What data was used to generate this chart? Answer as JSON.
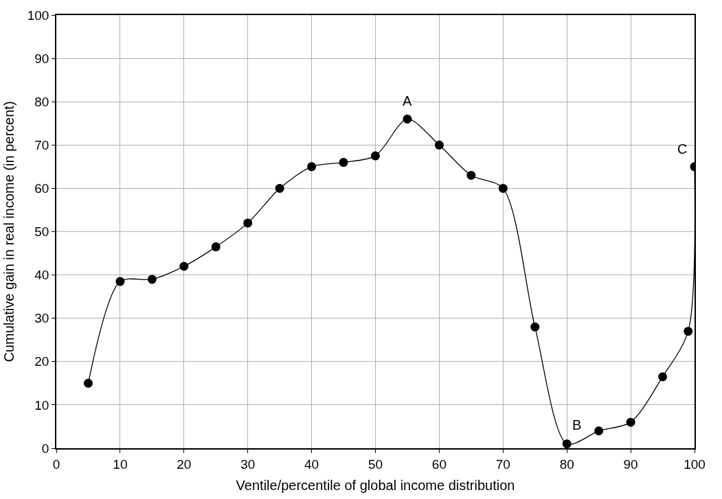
{
  "chart_data": {
    "type": "line",
    "xlabel": "Ventile/percentile of global income distribution",
    "ylabel": "Cumulative gain in real income (in percent)",
    "x": [
      5,
      10,
      15,
      20,
      25,
      30,
      35,
      40,
      45,
      50,
      55,
      60,
      65,
      70,
      75,
      80,
      85,
      90,
      95,
      99,
      100
    ],
    "series": [
      {
        "color": "#000000",
        "values": [
          15,
          38.5,
          39,
          42,
          46.5,
          52,
          60,
          65,
          66,
          67.5,
          76,
          70,
          63,
          60,
          28,
          1,
          4,
          6,
          16.5,
          27,
          65
        ]
      }
    ],
    "xlim": [
      0,
      100
    ],
    "xticks": [
      0,
      10,
      20,
      30,
      40,
      50,
      60,
      70,
      80,
      90,
      100
    ],
    "ylim": [
      0,
      100
    ],
    "yticks": [
      0,
      10,
      20,
      30,
      40,
      50,
      60,
      70,
      80,
      90,
      100
    ],
    "annotations": [
      {
        "text": "A",
        "x": 55,
        "y": 76
      },
      {
        "text": "B",
        "x": 80,
        "y": 1
      },
      {
        "text": "C",
        "x": 100,
        "y": 65
      }
    ],
    "grid": true,
    "marker": "circle",
    "line_style": "solid"
  }
}
